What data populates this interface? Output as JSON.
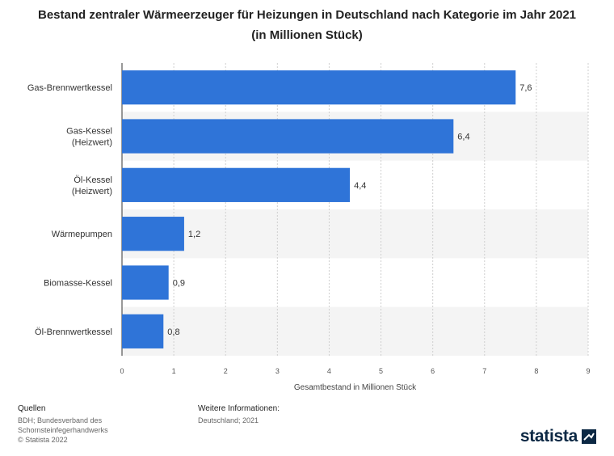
{
  "chart_data": {
    "type": "bar",
    "orientation": "horizontal",
    "title": "Bestand zentraler Wärmeerzeuger für Heizungen in Deutschland nach Kategorie im Jahr 2021 (in Millionen Stück)",
    "categories": [
      [
        "Gas-Brennwertkessel"
      ],
      [
        "Gas-Kessel",
        "(Heizwert)"
      ],
      [
        "Öl-Kessel",
        "(Heizwert)"
      ],
      [
        "Wärmepumpen"
      ],
      [
        "Biomasse-Kessel"
      ],
      [
        "Öl-Brennwertkessel"
      ]
    ],
    "values": [
      7.6,
      6.4,
      4.4,
      1.2,
      0.9,
      0.8
    ],
    "value_labels": [
      "7,6",
      "6,4",
      "4,4",
      "1,2",
      "0,9",
      "0,8"
    ],
    "xlabel": "Gesamtbestand in Millionen Stück",
    "xlim": [
      0,
      9
    ],
    "xticks": [
      0,
      1,
      2,
      3,
      4,
      5,
      6,
      7,
      8,
      9
    ],
    "grid": true,
    "bar_color": "#2f74d8",
    "stripe_color": "#f4f4f4"
  },
  "footer": {
    "sources_heading": "Quellen",
    "sources_lines": [
      "BDH; Bundesverband des",
      "Schornsteinfegerhandwerks",
      "© Statista 2022"
    ],
    "info_heading": "Weitere Informationen:",
    "info_lines": [
      "Deutschland; 2021"
    ]
  },
  "logo": {
    "text": "statista",
    "icon": "statista-logo-icon",
    "color": "#0c2844"
  }
}
